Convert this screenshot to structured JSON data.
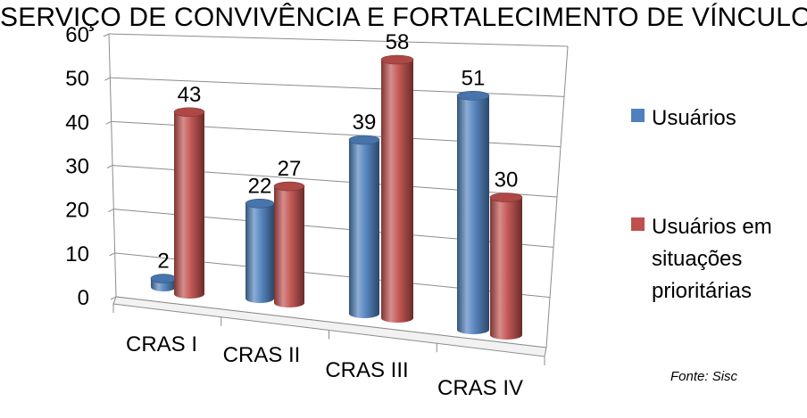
{
  "title": "SERVIÇO DE CONVIVÊNCIA E FORTALECIMENTO DE VÍNCULOS",
  "source_note": "Fonte: Sisc",
  "colors": {
    "Usuários": "#4f81bd",
    "Usuários em situações prioritárias": "#c0504d"
  },
  "legend_lines": [
    [
      "Usuários"
    ],
    [
      "Usuários em",
      "situações",
      "prioritárias"
    ]
  ],
  "chart_data": {
    "type": "bar",
    "subtype": "3d-cylinder-clustered",
    "title": "SERVIÇO DE CONVIVÊNCIA E FORTALECIMENTO DE VÍNCULOS",
    "categories": [
      "CRAS I",
      "CRAS II",
      "CRAS III",
      "CRAS IV"
    ],
    "series": [
      {
        "name": "Usuários",
        "values": [
          2,
          22,
          39,
          51
        ]
      },
      {
        "name": "Usuários em situações prioritárias",
        "values": [
          43,
          27,
          58,
          30
        ]
      }
    ],
    "ylim": [
      0,
      60
    ],
    "yticks": [
      0,
      10,
      20,
      30,
      40,
      50,
      60
    ],
    "grid": true,
    "legend": "right"
  }
}
